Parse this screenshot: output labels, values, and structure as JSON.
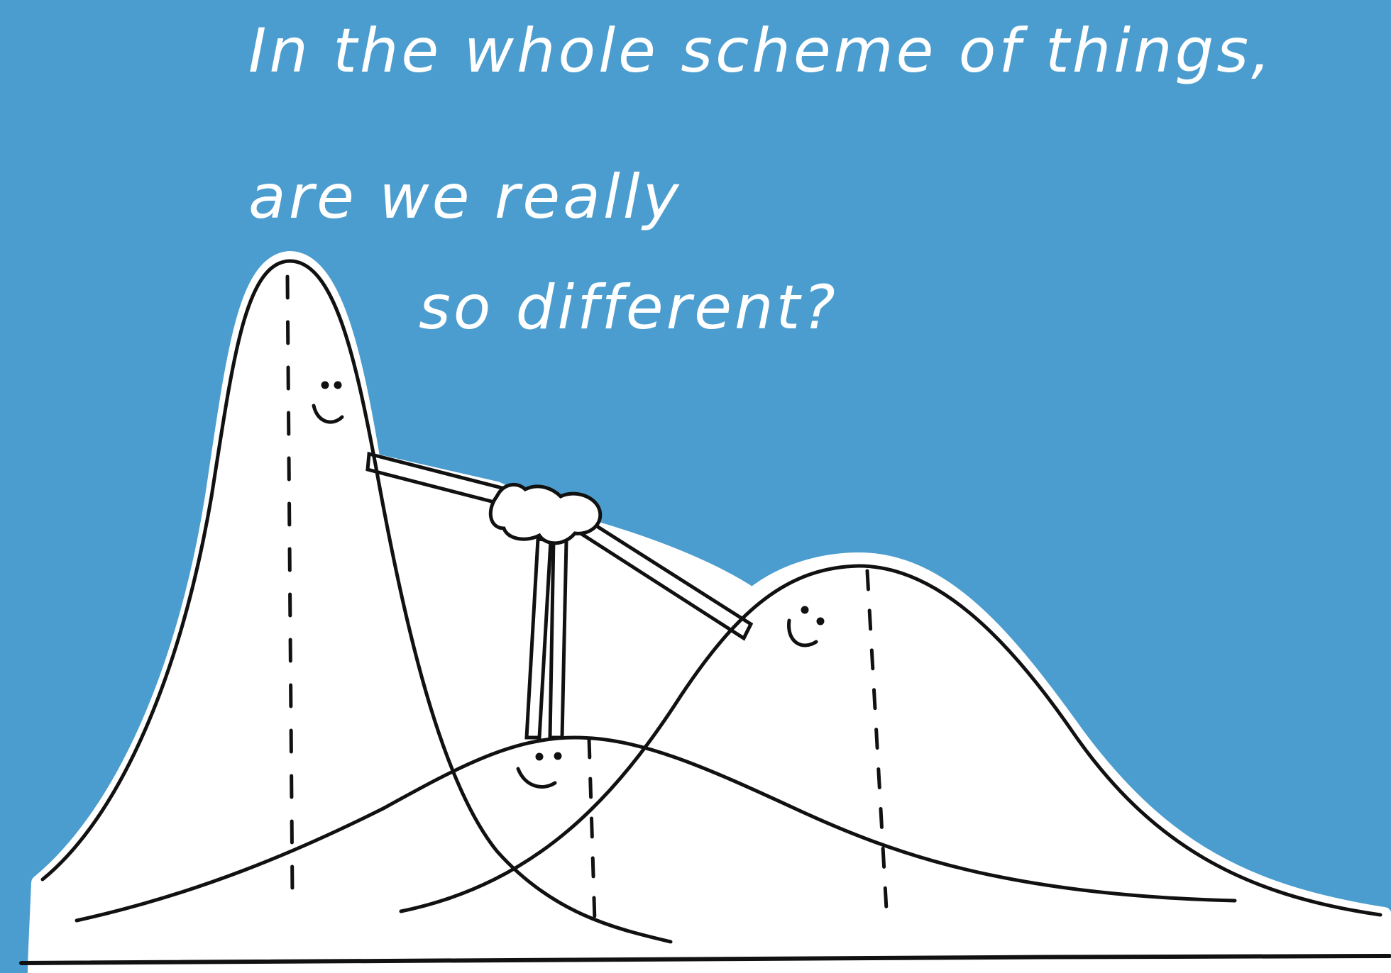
{
  "caption": {
    "line_1": "In the whole scheme of things,",
    "line_2": "are we really",
    "line_3": "so different?"
  },
  "figures": [
    {
      "name": "tall-narrow-curve",
      "expression": "smiling"
    },
    {
      "name": "low-wide-curve",
      "expression": "smiling"
    },
    {
      "name": "medium-curve",
      "expression": "smiling"
    }
  ],
  "colors": {
    "background": "#4b9dcf",
    "figure_fill": "#ffffff",
    "outline": "#111111",
    "text": "#ffffff"
  }
}
